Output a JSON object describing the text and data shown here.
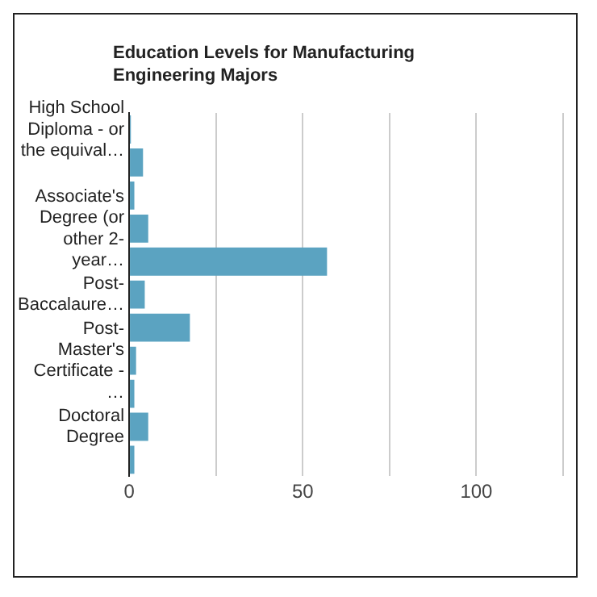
{
  "chart_data": {
    "type": "bar",
    "orientation": "horizontal",
    "title": "Education Levels for Manufacturing Engineering Majors",
    "categories": [
      "High School Diploma - or the equival…",
      null,
      null,
      "Associate's Degree (or other 2-year…",
      null,
      "Post-Baccalaure…",
      null,
      "Post-Master's Certificate -…",
      null,
      "Doctoral Degree",
      null
    ],
    "values": [
      0.5,
      4,
      1.5,
      5.5,
      57,
      4.5,
      17.5,
      2,
      1.5,
      5.5,
      1.5
    ],
    "color": "#5ba3c1",
    "xlim": [
      0,
      125
    ],
    "xticks": [
      0,
      {
        "value": 25,
        "label": null
      },
      50,
      {
        "value": 75,
        "label": null
      },
      100,
      {
        "value": 125,
        "label": null
      }
    ],
    "grid": "x",
    "legend": false
  }
}
